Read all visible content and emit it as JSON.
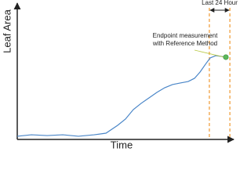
{
  "chart_data": {
    "type": "line",
    "xlabel": "Time",
    "ylabel": "Leaf Area",
    "x": [
      0,
      6.7,
      14.1,
      21.5,
      28.9,
      36.3,
      41.9,
      47.4,
      51.1,
      54.8,
      58.5,
      62.2,
      65.9,
      69.6,
      73.3,
      77,
      80.7,
      83.7,
      86.3,
      88.9,
      91.1,
      93.7,
      96.3,
      98.5
    ],
    "values": [
      2.4,
      3.5,
      2.9,
      3.5,
      2.4,
      3.5,
      4.7,
      10.6,
      15.3,
      22.4,
      27.1,
      31.2,
      35.3,
      38.8,
      41.2,
      42.4,
      43.5,
      45.9,
      50.6,
      56.5,
      61.2,
      62.9,
      62.4,
      61.8
    ],
    "color": "#4a86c8",
    "xlim": [
      0,
      100
    ],
    "ylim": [
      0,
      100
    ],
    "window": {
      "label": "Last 24 Hour",
      "x": [
        90.7,
        100.4
      ],
      "color": "#f0a040"
    },
    "endpoint": {
      "label": [
        "Endpoint measurement",
        "with Reference Method"
      ],
      "color": "#5cb85c"
    }
  }
}
